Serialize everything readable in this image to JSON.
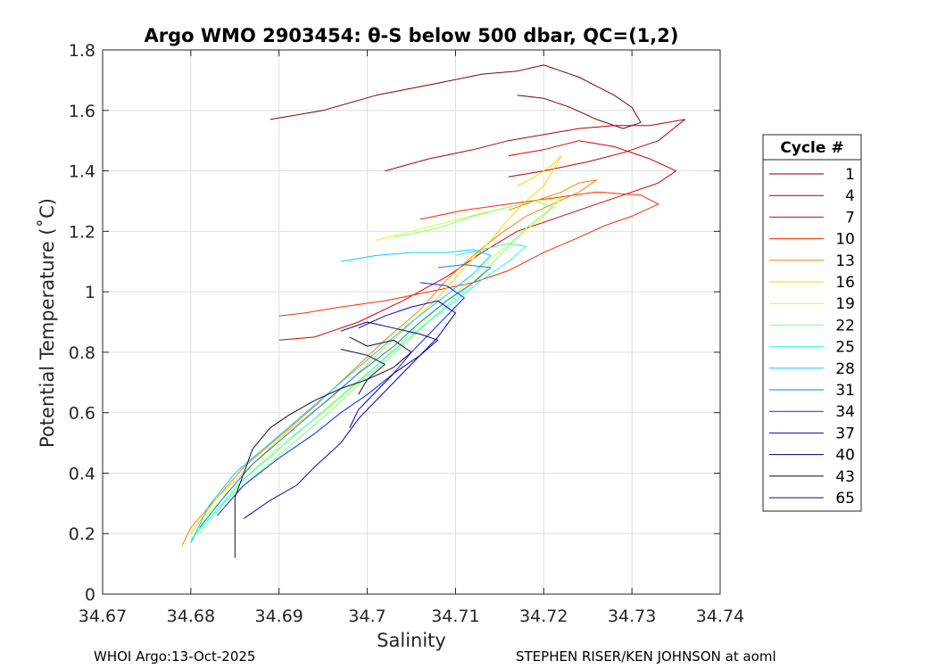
{
  "chart_data": {
    "type": "line",
    "title": "Argo WMO 2903454: θ-S below 500 dbar,  QC=(1,2)",
    "xlabel": "Salinity",
    "ylabel": "Potential Temperature (˚C)",
    "xlim": [
      34.67,
      34.74
    ],
    "ylim": [
      0,
      1.8
    ],
    "xticks": [
      34.67,
      34.68,
      34.69,
      34.7,
      34.71,
      34.72,
      34.73,
      34.74
    ],
    "xtick_labels": [
      "34.67",
      "34.68",
      "34.69",
      "34.7",
      "34.71",
      "34.72",
      "34.73",
      "34.74"
    ],
    "yticks": [
      0,
      0.2,
      0.4,
      0.6,
      0.8,
      1.0,
      1.2,
      1.4,
      1.6,
      1.8
    ],
    "ytick_labels": [
      "0",
      "0.2",
      "0.4",
      "0.6",
      "0.8",
      "1",
      "1.2",
      "1.4",
      "1.6",
      "1.8"
    ],
    "grid": true,
    "legend": {
      "title": "Cycle #",
      "placement": "outside-right",
      "entries": [
        "1",
        "4",
        "7",
        "10",
        "13",
        "16",
        "19",
        "22",
        "25",
        "28",
        "31",
        "34",
        "37",
        "40",
        "43",
        "65"
      ]
    },
    "series": [
      {
        "name": "1",
        "color": "#800000",
        "points": [
          [
            34.689,
            1.57
          ],
          [
            34.695,
            1.6
          ],
          [
            34.701,
            1.65
          ],
          [
            34.708,
            1.69
          ],
          [
            34.713,
            1.72
          ],
          [
            34.717,
            1.73
          ],
          [
            34.72,
            1.75
          ],
          [
            34.722,
            1.73
          ],
          [
            34.724,
            1.71
          ],
          [
            34.726,
            1.68
          ],
          [
            34.728,
            1.65
          ],
          [
            34.73,
            1.61
          ],
          [
            34.731,
            1.56
          ],
          [
            34.729,
            1.54
          ],
          [
            34.726,
            1.57
          ],
          [
            34.723,
            1.61
          ],
          [
            34.72,
            1.64
          ],
          [
            34.717,
            1.65
          ]
        ]
      },
      {
        "name": "4",
        "color": "#b40000",
        "points": [
          [
            34.702,
            1.4
          ],
          [
            34.707,
            1.44
          ],
          [
            34.712,
            1.47
          ],
          [
            34.716,
            1.5
          ],
          [
            34.72,
            1.52
          ],
          [
            34.724,
            1.54
          ],
          [
            34.728,
            1.55
          ],
          [
            34.732,
            1.55
          ],
          [
            34.736,
            1.57
          ],
          [
            34.733,
            1.5
          ],
          [
            34.729,
            1.46
          ],
          [
            34.725,
            1.43
          ],
          [
            34.72,
            1.4
          ],
          [
            34.716,
            1.38
          ]
        ]
      },
      {
        "name": "7",
        "color": "#dc0000",
        "points": [
          [
            34.716,
            1.45
          ],
          [
            34.72,
            1.47
          ],
          [
            34.724,
            1.5
          ],
          [
            34.728,
            1.48
          ],
          [
            34.732,
            1.44
          ],
          [
            34.735,
            1.4
          ],
          [
            34.733,
            1.36
          ],
          [
            34.729,
            1.32
          ],
          [
            34.725,
            1.28
          ],
          [
            34.721,
            1.24
          ],
          [
            34.717,
            1.2
          ],
          [
            34.713,
            1.13
          ],
          [
            34.709,
            1.05
          ],
          [
            34.704,
            0.97
          ],
          [
            34.699,
            0.9
          ],
          [
            34.694,
            0.85
          ],
          [
            34.69,
            0.84
          ]
        ]
      },
      {
        "name": "10",
        "color": "#ff2a00",
        "points": [
          [
            34.706,
            1.24
          ],
          [
            34.711,
            1.27
          ],
          [
            34.716,
            1.29
          ],
          [
            34.721,
            1.31
          ],
          [
            34.726,
            1.33
          ],
          [
            34.731,
            1.32
          ],
          [
            34.733,
            1.29
          ],
          [
            34.73,
            1.25
          ],
          [
            34.727,
            1.22
          ],
          [
            34.724,
            1.18
          ],
          [
            34.72,
            1.13
          ],
          [
            34.716,
            1.07
          ],
          [
            34.712,
            1.03
          ],
          [
            34.707,
            1.0
          ],
          [
            34.702,
            0.97
          ],
          [
            34.697,
            0.95
          ],
          [
            34.693,
            0.93
          ],
          [
            34.69,
            0.92
          ]
        ]
      },
      {
        "name": "13",
        "color": "#ff8000",
        "points": [
          [
            34.716,
            1.27
          ],
          [
            34.719,
            1.3
          ],
          [
            34.722,
            1.33
          ],
          [
            34.724,
            1.36
          ],
          [
            34.726,
            1.37
          ],
          [
            34.724,
            1.33
          ],
          [
            34.721,
            1.29
          ],
          [
            34.718,
            1.25
          ],
          [
            34.715,
            1.19
          ],
          [
            34.712,
            1.12
          ],
          [
            34.709,
            1.04
          ],
          [
            34.706,
            0.94
          ],
          [
            34.702,
            0.84
          ],
          [
            34.698,
            0.73
          ],
          [
            34.694,
            0.62
          ],
          [
            34.69,
            0.52
          ],
          [
            34.686,
            0.42
          ],
          [
            34.683,
            0.32
          ],
          [
            34.68,
            0.22
          ],
          [
            34.679,
            0.16
          ]
        ]
      },
      {
        "name": "16",
        "color": "#ffd500",
        "points": [
          [
            34.717,
            1.35
          ],
          [
            34.719,
            1.38
          ],
          [
            34.721,
            1.42
          ],
          [
            34.722,
            1.45
          ],
          [
            34.721,
            1.4
          ],
          [
            34.72,
            1.35
          ],
          [
            34.718,
            1.3
          ],
          [
            34.716,
            1.24
          ],
          [
            34.714,
            1.17
          ],
          [
            34.711,
            1.08
          ],
          [
            34.708,
            0.98
          ],
          [
            34.704,
            0.87
          ],
          [
            34.7,
            0.76
          ],
          [
            34.696,
            0.65
          ],
          [
            34.691,
            0.54
          ],
          [
            34.687,
            0.43
          ],
          [
            34.683,
            0.32
          ],
          [
            34.68,
            0.2
          ]
        ]
      },
      {
        "name": "19",
        "color": "#d5ff2a",
        "points": [
          [
            34.701,
            1.17
          ],
          [
            34.705,
            1.2
          ],
          [
            34.709,
            1.23
          ],
          [
            34.713,
            1.26
          ],
          [
            34.716,
            1.28
          ],
          [
            34.719,
            1.3
          ],
          [
            34.722,
            1.31
          ],
          [
            34.72,
            1.25
          ],
          [
            34.717,
            1.18
          ],
          [
            34.714,
            1.11
          ],
          [
            34.711,
            1.02
          ],
          [
            34.707,
            0.92
          ],
          [
            34.703,
            0.81
          ],
          [
            34.699,
            0.7
          ],
          [
            34.695,
            0.6
          ],
          [
            34.69,
            0.49
          ],
          [
            34.686,
            0.38
          ],
          [
            34.682,
            0.27
          ],
          [
            34.68,
            0.17
          ]
        ]
      },
      {
        "name": "22",
        "color": "#80ff80",
        "points": [
          [
            34.703,
            1.18
          ],
          [
            34.708,
            1.21
          ],
          [
            34.712,
            1.25
          ],
          [
            34.716,
            1.28
          ],
          [
            34.719,
            1.3
          ],
          [
            34.721,
            1.28
          ],
          [
            34.718,
            1.21
          ],
          [
            34.715,
            1.12
          ],
          [
            34.712,
            1.03
          ],
          [
            34.708,
            0.93
          ],
          [
            34.704,
            0.82
          ],
          [
            34.7,
            0.72
          ],
          [
            34.696,
            0.61
          ],
          [
            34.692,
            0.51
          ],
          [
            34.688,
            0.41
          ],
          [
            34.684,
            0.31
          ],
          [
            34.681,
            0.2
          ]
        ]
      },
      {
        "name": "25",
        "color": "#2affd5",
        "points": [
          [
            34.71,
            1.12
          ],
          [
            34.713,
            1.14
          ],
          [
            34.716,
            1.16
          ],
          [
            34.718,
            1.15
          ],
          [
            34.716,
            1.1
          ],
          [
            34.713,
            1.04
          ],
          [
            34.71,
            0.97
          ],
          [
            34.706,
            0.88
          ],
          [
            34.702,
            0.78
          ],
          [
            34.698,
            0.68
          ],
          [
            34.694,
            0.58
          ],
          [
            34.69,
            0.48
          ],
          [
            34.686,
            0.38
          ],
          [
            34.683,
            0.28
          ],
          [
            34.68,
            0.18
          ]
        ]
      },
      {
        "name": "28",
        "color": "#00d5ff",
        "points": [
          [
            34.697,
            1.1
          ],
          [
            34.701,
            1.12
          ],
          [
            34.705,
            1.13
          ],
          [
            34.709,
            1.13
          ],
          [
            34.712,
            1.14
          ],
          [
            34.714,
            1.12
          ],
          [
            34.712,
            1.06
          ],
          [
            34.709,
            0.99
          ],
          [
            34.705,
            0.9
          ],
          [
            34.701,
            0.8
          ],
          [
            34.697,
            0.7
          ],
          [
            34.693,
            0.6
          ],
          [
            34.689,
            0.5
          ],
          [
            34.685,
            0.4
          ],
          [
            34.682,
            0.29
          ],
          [
            34.68,
            0.17
          ]
        ]
      },
      {
        "name": "31",
        "color": "#0080ff",
        "points": [
          [
            34.708,
            1.08
          ],
          [
            34.711,
            1.09
          ],
          [
            34.714,
            1.08
          ],
          [
            34.712,
            1.03
          ],
          [
            34.709,
            0.97
          ],
          [
            34.706,
            0.9
          ],
          [
            34.703,
            0.82
          ],
          [
            34.699,
            0.73
          ],
          [
            34.695,
            0.63
          ],
          [
            34.691,
            0.53
          ],
          [
            34.687,
            0.43
          ],
          [
            34.684,
            0.33
          ],
          [
            34.681,
            0.22
          ]
        ]
      },
      {
        "name": "34",
        "color": "#002aff",
        "points": [
          [
            34.706,
            1.03
          ],
          [
            34.709,
            1.02
          ],
          [
            34.711,
            0.98
          ],
          [
            34.709,
            0.92
          ],
          [
            34.707,
            0.86
          ],
          [
            34.705,
            0.8
          ],
          [
            34.703,
            0.73
          ],
          [
            34.7,
            0.66
          ],
          [
            34.697,
            0.6
          ],
          [
            34.694,
            0.53
          ],
          [
            34.69,
            0.45
          ],
          [
            34.686,
            0.36
          ],
          [
            34.683,
            0.26
          ]
        ]
      },
      {
        "name": "37",
        "color": "#0000d5",
        "points": [
          [
            34.699,
            0.88
          ],
          [
            34.702,
            0.92
          ],
          [
            34.705,
            0.95
          ],
          [
            34.708,
            0.97
          ],
          [
            34.71,
            0.93
          ],
          [
            34.708,
            0.85
          ],
          [
            34.705,
            0.76
          ],
          [
            34.702,
            0.67
          ],
          [
            34.699,
            0.58
          ],
          [
            34.697,
            0.5
          ],
          [
            34.694,
            0.42
          ],
          [
            34.692,
            0.36
          ],
          [
            34.689,
            0.31
          ],
          [
            34.686,
            0.25
          ]
        ]
      },
      {
        "name": "40",
        "color": "#000080",
        "points": [
          [
            34.697,
            0.87
          ],
          [
            34.7,
            0.9
          ],
          [
            34.703,
            0.88
          ],
          [
            34.706,
            0.86
          ],
          [
            34.708,
            0.84
          ],
          [
            34.706,
            0.79
          ],
          [
            34.703,
            0.73
          ],
          [
            34.701,
            0.67
          ],
          [
            34.699,
            0.61
          ],
          [
            34.698,
            0.55
          ]
        ]
      },
      {
        "name": "43",
        "color": "#1a0040",
        "points": [
          [
            34.698,
            0.85
          ],
          [
            34.7,
            0.82
          ],
          [
            34.703,
            0.84
          ],
          [
            34.705,
            0.8
          ],
          [
            34.703,
            0.75
          ],
          [
            34.7,
            0.71
          ],
          [
            34.699,
            0.66
          ]
        ]
      },
      {
        "name": "65",
        "color": "#0a1040",
        "points": [
          [
            34.697,
            0.81
          ],
          [
            34.7,
            0.79
          ],
          [
            34.702,
            0.76
          ],
          [
            34.7,
            0.71
          ],
          [
            34.697,
            0.68
          ],
          [
            34.694,
            0.64
          ],
          [
            34.691,
            0.59
          ],
          [
            34.689,
            0.55
          ],
          [
            34.687,
            0.48
          ],
          [
            34.686,
            0.4
          ],
          [
            34.685,
            0.32
          ],
          [
            34.685,
            0.12
          ]
        ]
      }
    ]
  },
  "footer": {
    "left": "WHOI Argo:13-Oct-2025",
    "right": "STEPHEN RISER/KEN JOHNSON at aoml"
  }
}
